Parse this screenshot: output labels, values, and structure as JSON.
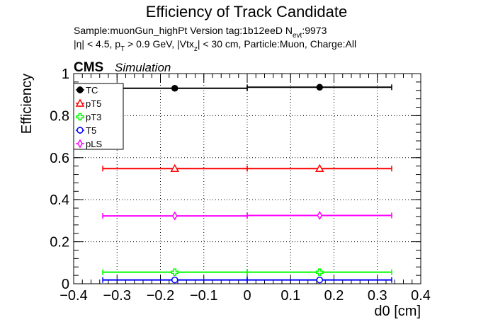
{
  "header": {
    "title": "Efficiency of Track Candidate",
    "sample_line": "Sample:muonGun_highPt   Version tag:1b12eeD  N",
    "nevt_sub": "evt",
    "nevt_value": ":9973",
    "cuts_eta": "|η| < 4.5, p",
    "cuts_pt_sub": "T",
    "cuts_pt": " > 0.9 GeV, |Vtx",
    "cuts_vtx_sub": "z",
    "cuts_rest": "| < 30 cm, Particle:Muon, Charge:All",
    "cms": "CMS",
    "simulation": "Simulation"
  },
  "chart_data": {
    "type": "scatter",
    "title": "Efficiency of Track Candidate",
    "xlabel": "d0 [cm]",
    "ylabel": "Efficiency",
    "xlim": [
      -0.4,
      0.4
    ],
    "ylim": [
      0,
      1.0
    ],
    "x_ticks": [
      "−0.4",
      "−0.3",
      "−0.2",
      "−0.1",
      "0",
      "0.1",
      "0.2",
      "0.3",
      "0.4"
    ],
    "y_ticks": [
      "0",
      "0.2",
      "0.4",
      "0.6",
      "0.8",
      "1"
    ],
    "grid": true,
    "legend_position": "top-left",
    "bins": [
      {
        "x": -0.167,
        "xlow": -0.333,
        "xhigh": 0.0
      },
      {
        "x": 0.167,
        "xlow": 0.0,
        "xhigh": 0.333
      }
    ],
    "series": [
      {
        "name": "TC",
        "color": "#000000",
        "marker": "filled-circle",
        "values": [
          0.93,
          0.935
        ]
      },
      {
        "name": "pT5",
        "color": "#ff0000",
        "marker": "open-triangle",
        "values": [
          0.548,
          0.548
        ]
      },
      {
        "name": "pT3",
        "color": "#00ff00",
        "marker": "open-cross",
        "values": [
          0.055,
          0.055
        ]
      },
      {
        "name": "T5",
        "color": "#0000ff",
        "marker": "open-circle",
        "values": [
          0.018,
          0.018
        ]
      },
      {
        "name": "pLS",
        "color": "#ff00ff",
        "marker": "open-diamond",
        "values": [
          0.323,
          0.325
        ]
      }
    ]
  }
}
